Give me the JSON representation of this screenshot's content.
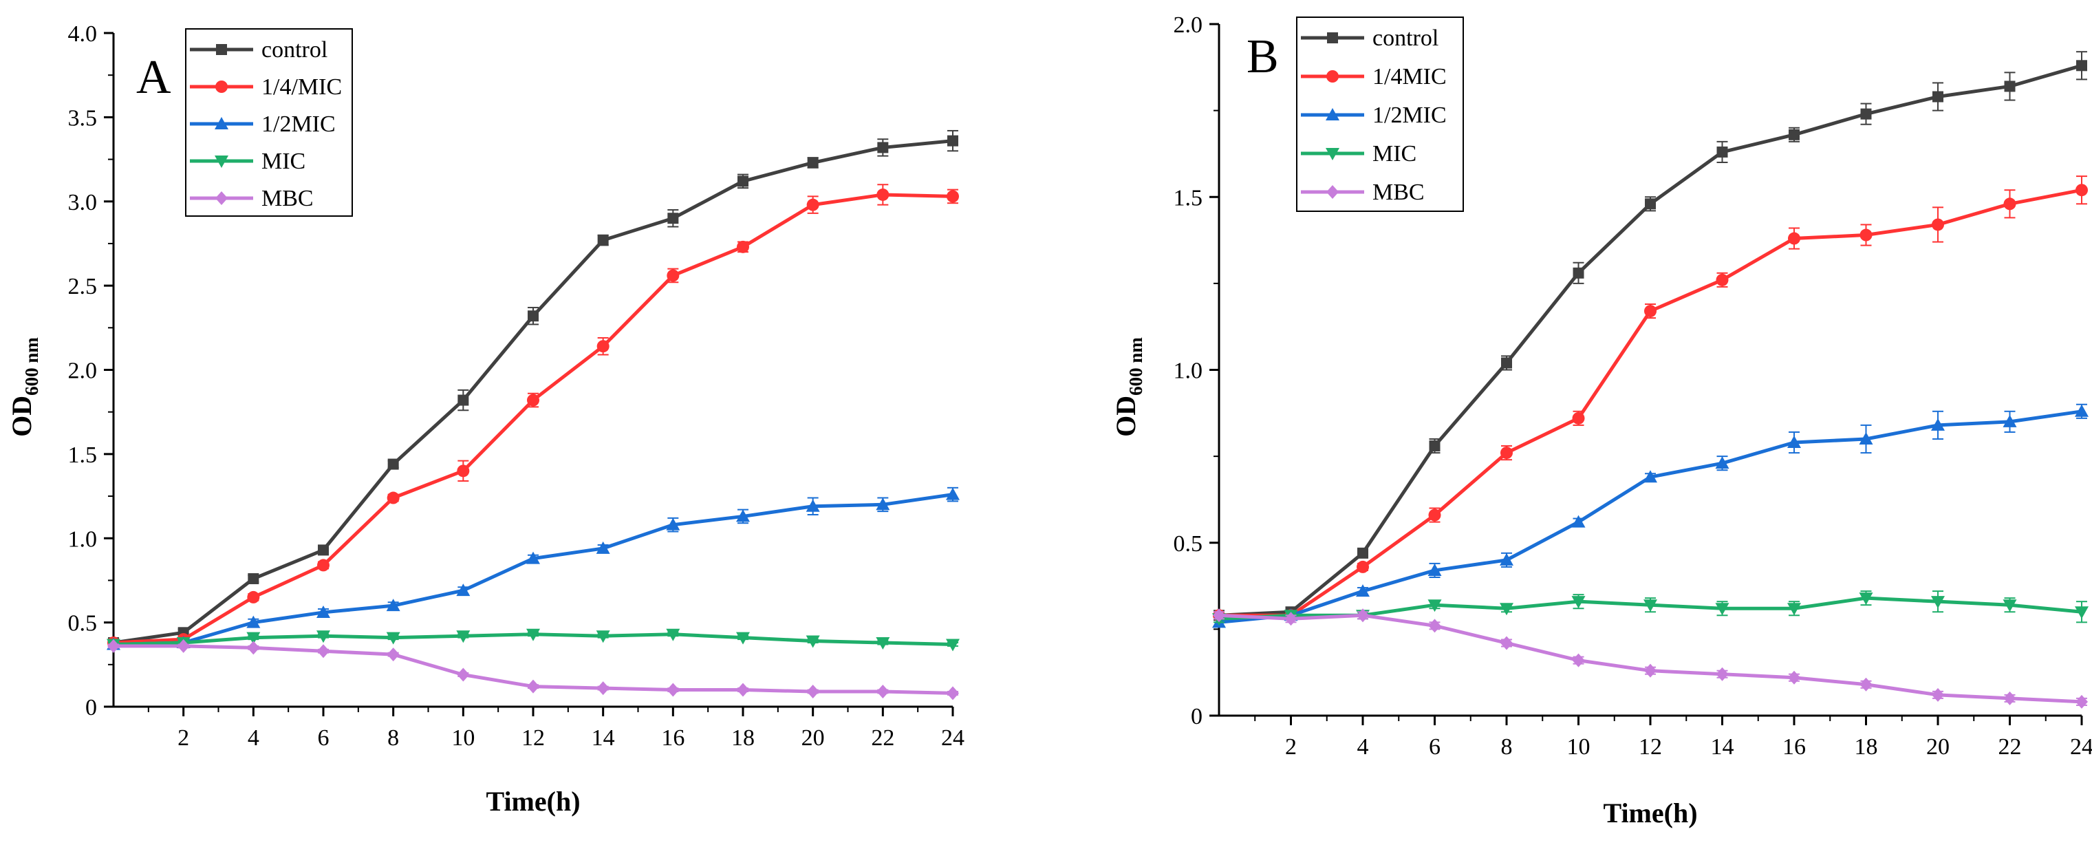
{
  "chart_data": [
    {
      "panel": "A",
      "type": "line",
      "xlabel": "Time(h)",
      "ylabel_main": "OD",
      "ylabel_sub": "600 nm",
      "xlim": [
        0,
        24
      ],
      "ylim": [
        0,
        4.0
      ],
      "xticks": [
        2,
        4,
        6,
        8,
        10,
        12,
        14,
        16,
        18,
        20,
        22,
        24
      ],
      "yticks": [
        0,
        0.5,
        1.0,
        1.5,
        2.0,
        2.5,
        3.0,
        3.5,
        4.0
      ],
      "ytick_labels": [
        "0",
        "0.5",
        "1.0",
        "1.5",
        "2.0",
        "2.5",
        "3.0",
        "3.5",
        "4.0"
      ],
      "x": [
        0,
        2,
        4,
        6,
        8,
        10,
        12,
        14,
        16,
        18,
        20,
        22,
        24
      ],
      "legend_position": "top-left",
      "series": [
        {
          "name": "control",
          "color": "#404040",
          "marker": "square",
          "values": [
            0.38,
            0.44,
            0.76,
            0.93,
            1.44,
            1.82,
            2.32,
            2.77,
            2.9,
            3.12,
            3.23,
            3.32,
            3.36
          ],
          "errors": [
            0.02,
            0.02,
            0.02,
            0.02,
            0.02,
            0.06,
            0.05,
            0.03,
            0.05,
            0.04,
            0.03,
            0.05,
            0.06
          ]
        },
        {
          "name": "1/4/MIC",
          "color": "#ff3333",
          "marker": "circle",
          "values": [
            0.38,
            0.4,
            0.65,
            0.84,
            1.24,
            1.4,
            1.82,
            2.14,
            2.56,
            2.73,
            2.98,
            3.04,
            3.03
          ],
          "errors": [
            0.02,
            0.02,
            0.02,
            0.02,
            0.02,
            0.06,
            0.04,
            0.05,
            0.04,
            0.03,
            0.05,
            0.06,
            0.04
          ]
        },
        {
          "name": "1/2MIC",
          "color": "#1a6fd6",
          "marker": "triangle-up",
          "values": [
            0.37,
            0.38,
            0.5,
            0.56,
            0.6,
            0.69,
            0.88,
            0.94,
            1.08,
            1.13,
            1.19,
            1.2,
            1.26
          ],
          "errors": [
            0.02,
            0.02,
            0.02,
            0.02,
            0.02,
            0.02,
            0.02,
            0.02,
            0.04,
            0.04,
            0.05,
            0.04,
            0.04
          ]
        },
        {
          "name": "MIC",
          "color": "#1fae6a",
          "marker": "triangle-down",
          "values": [
            0.37,
            0.38,
            0.41,
            0.42,
            0.41,
            0.42,
            0.43,
            0.42,
            0.43,
            0.41,
            0.39,
            0.38,
            0.37
          ],
          "errors": [
            0.01,
            0.01,
            0.01,
            0.01,
            0.01,
            0.01,
            0.01,
            0.01,
            0.01,
            0.01,
            0.01,
            0.01,
            0.01
          ]
        },
        {
          "name": "MBC",
          "color": "#c77ddb",
          "marker": "diamond",
          "values": [
            0.36,
            0.36,
            0.35,
            0.33,
            0.31,
            0.19,
            0.12,
            0.11,
            0.1,
            0.1,
            0.09,
            0.09,
            0.08
          ],
          "errors": [
            0.01,
            0.01,
            0.01,
            0.01,
            0.01,
            0.01,
            0.01,
            0.01,
            0.01,
            0.01,
            0.01,
            0.01,
            0.01
          ]
        }
      ]
    },
    {
      "panel": "B",
      "type": "line",
      "xlabel": "Time(h)",
      "ylabel_main": "OD",
      "ylabel_sub": "600 nm",
      "xlim": [
        0,
        24
      ],
      "ylim": [
        0,
        2.0
      ],
      "xticks": [
        2,
        4,
        6,
        8,
        10,
        12,
        14,
        16,
        18,
        20,
        22,
        24
      ],
      "yticks": [
        0,
        0.5,
        1.0,
        1.5,
        2.0
      ],
      "ytick_labels": [
        "0",
        "0.5",
        "1.0",
        "1.5",
        "2.0"
      ],
      "x": [
        0,
        2,
        4,
        6,
        8,
        10,
        12,
        14,
        16,
        18,
        20,
        22,
        24
      ],
      "legend_position": "top-left",
      "series": [
        {
          "name": "control",
          "color": "#404040",
          "marker": "square",
          "values": [
            0.29,
            0.3,
            0.47,
            0.78,
            1.02,
            1.28,
            1.48,
            1.63,
            1.68,
            1.74,
            1.79,
            1.82,
            1.88
          ],
          "errors": [
            0.01,
            0.01,
            0.01,
            0.02,
            0.02,
            0.03,
            0.02,
            0.03,
            0.02,
            0.03,
            0.04,
            0.04,
            0.04
          ]
        },
        {
          "name": "1/4MIC",
          "color": "#ff3333",
          "marker": "circle",
          "values": [
            0.29,
            0.29,
            0.43,
            0.58,
            0.76,
            0.86,
            1.17,
            1.26,
            1.38,
            1.39,
            1.42,
            1.48,
            1.52
          ],
          "errors": [
            0.01,
            0.01,
            0.01,
            0.02,
            0.02,
            0.02,
            0.02,
            0.02,
            0.03,
            0.03,
            0.05,
            0.04,
            0.04
          ]
        },
        {
          "name": "1/2MIC",
          "color": "#1a6fd6",
          "marker": "triangle-up",
          "values": [
            0.27,
            0.29,
            0.36,
            0.42,
            0.45,
            0.56,
            0.69,
            0.73,
            0.79,
            0.8,
            0.84,
            0.85,
            0.88
          ],
          "errors": [
            0.01,
            0.01,
            0.01,
            0.02,
            0.02,
            0.01,
            0.01,
            0.02,
            0.03,
            0.04,
            0.04,
            0.03,
            0.02
          ]
        },
        {
          "name": "MIC",
          "color": "#1fae6a",
          "marker": "triangle-down",
          "values": [
            0.28,
            0.29,
            0.29,
            0.32,
            0.31,
            0.33,
            0.32,
            0.31,
            0.31,
            0.34,
            0.33,
            0.32,
            0.3
          ],
          "errors": [
            0.01,
            0.01,
            0.01,
            0.01,
            0.01,
            0.02,
            0.02,
            0.02,
            0.02,
            0.02,
            0.03,
            0.02,
            0.03
          ]
        },
        {
          "name": "MBC",
          "color": "#c77ddb",
          "marker": "diamond",
          "values": [
            0.29,
            0.28,
            0.29,
            0.26,
            0.21,
            0.16,
            0.13,
            0.12,
            0.11,
            0.09,
            0.06,
            0.05,
            0.04
          ],
          "errors": [
            0.01,
            0.01,
            0.01,
            0.01,
            0.01,
            0.01,
            0.01,
            0.01,
            0.01,
            0.01,
            0.01,
            0.01,
            0.01
          ]
        }
      ]
    }
  ]
}
